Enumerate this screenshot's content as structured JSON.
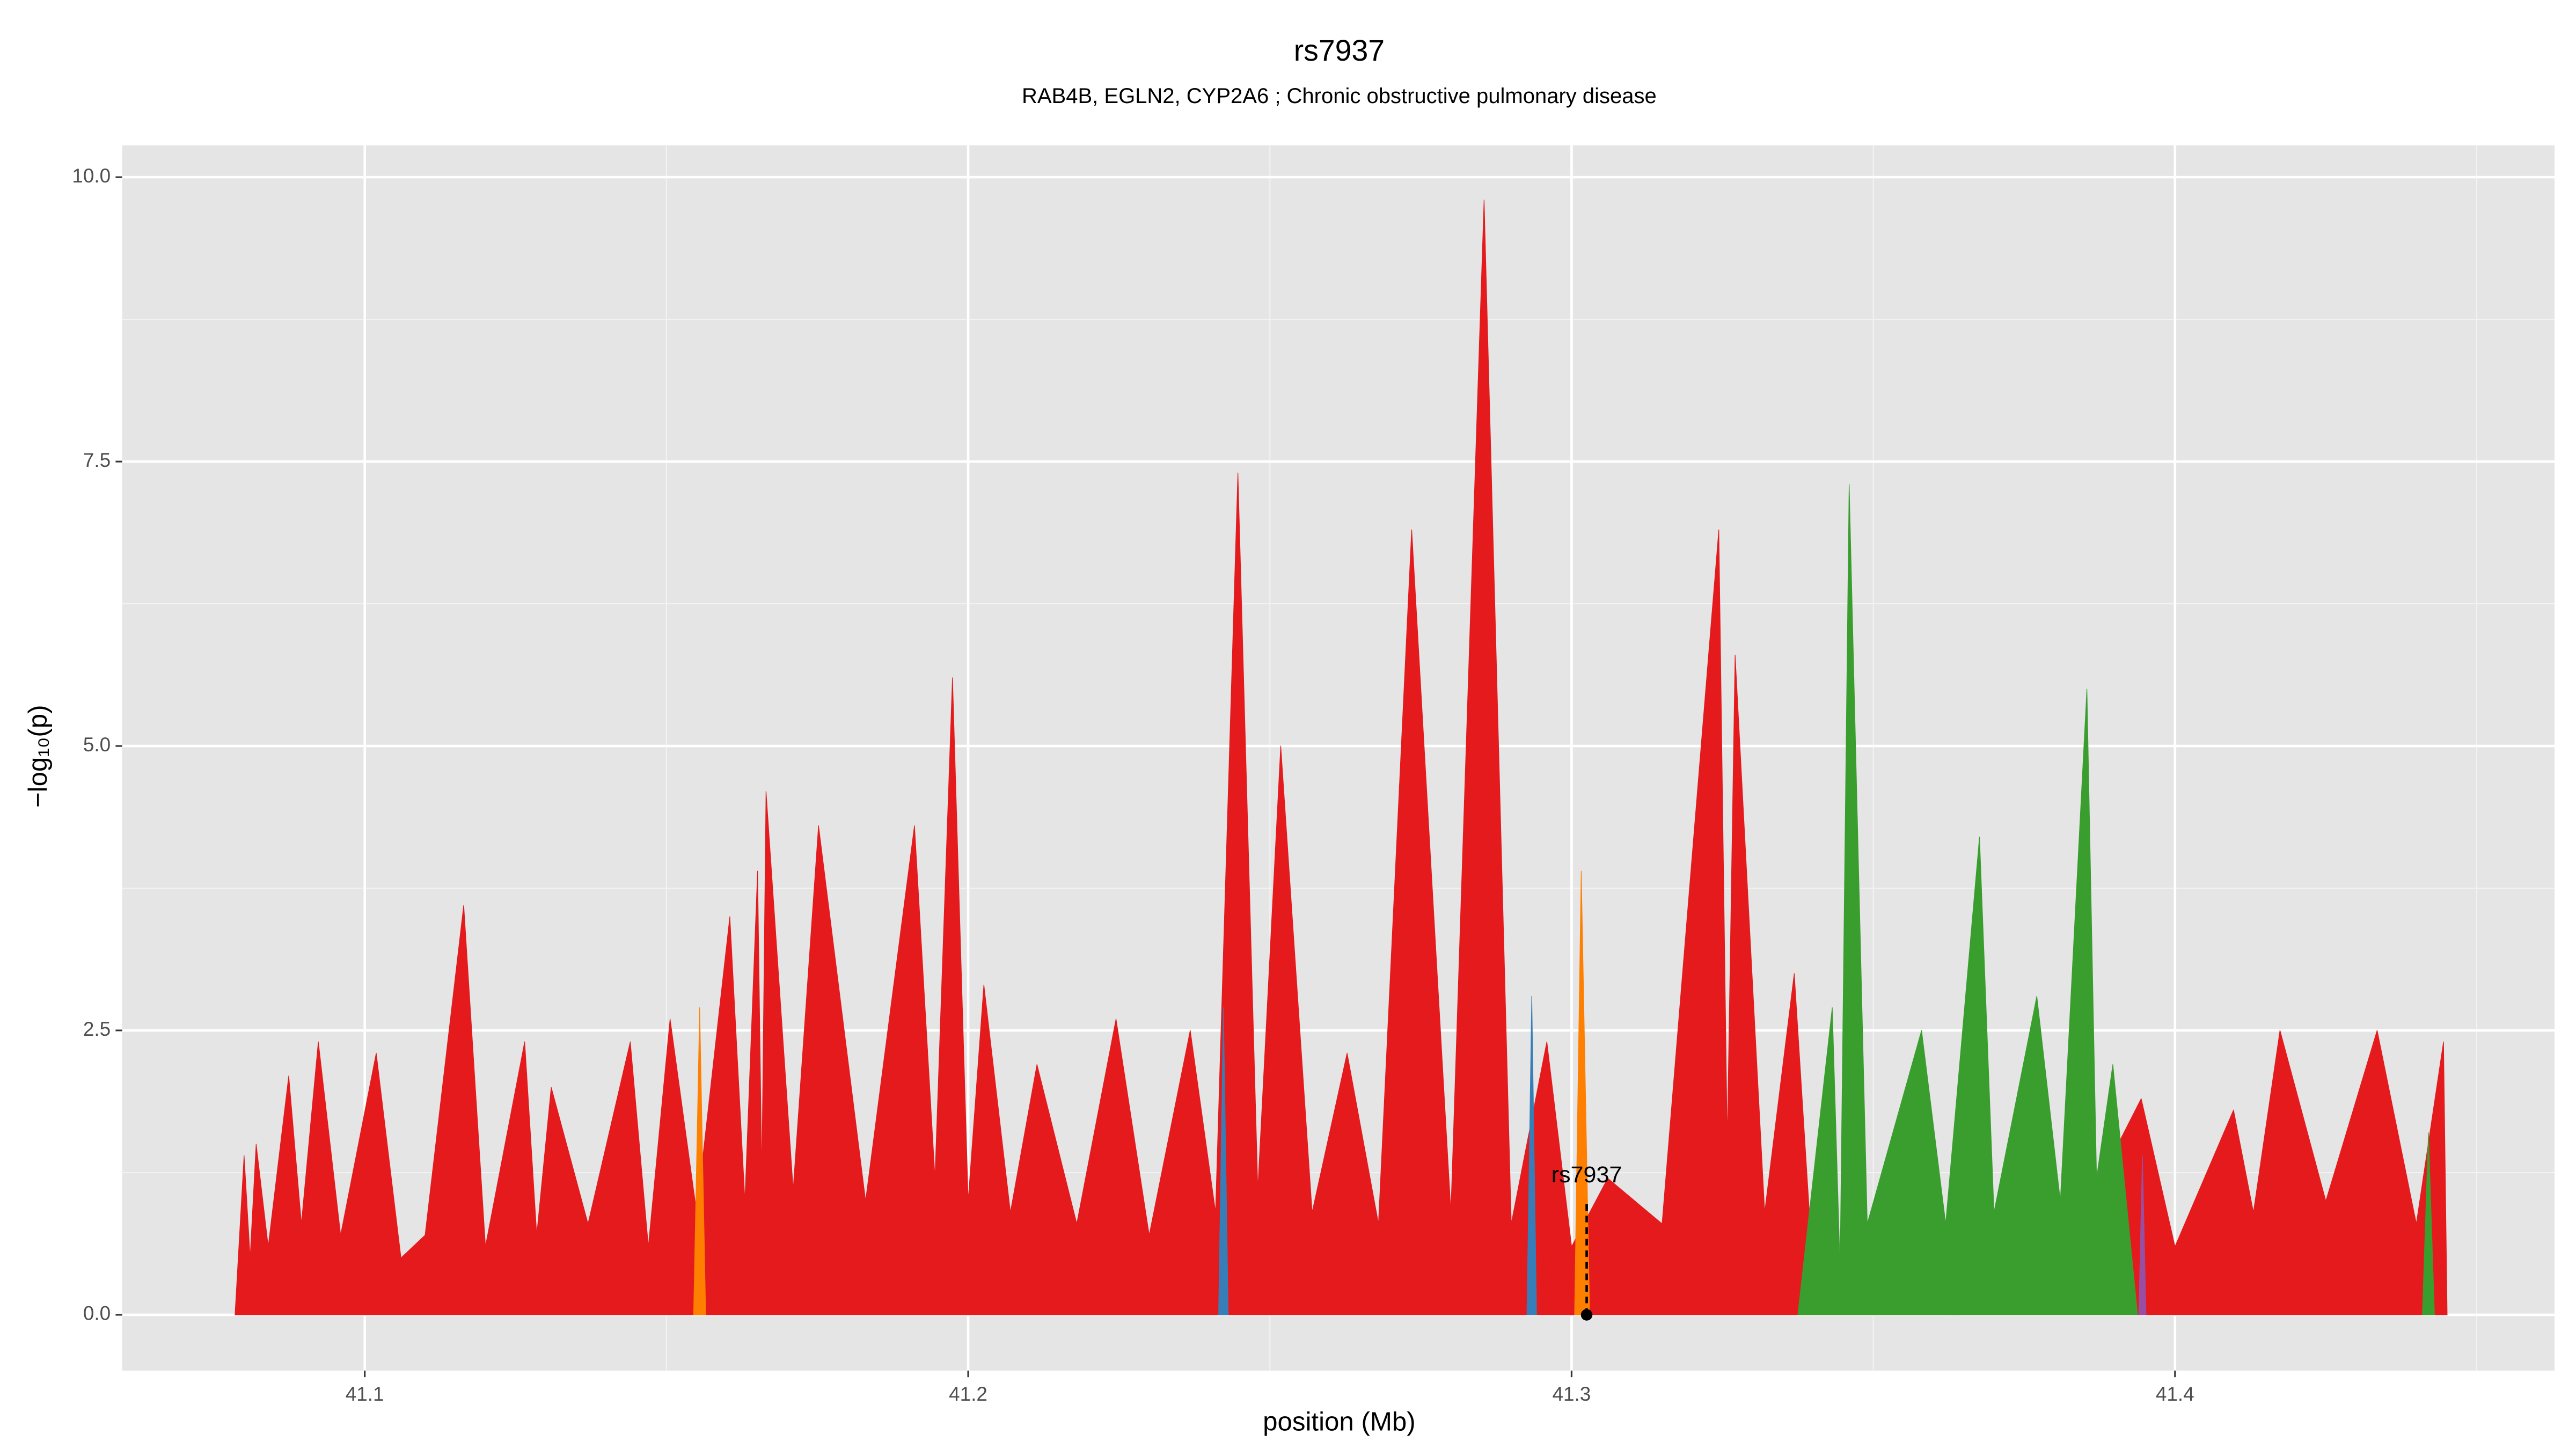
{
  "chart_data": {
    "type": "area",
    "title": "rs7937",
    "subtitle": "RAB4B, EGLN2, CYP2A6 ; Chronic obstructive pulmonary disease",
    "x_label": "position (Mb)",
    "y_label": "−log₁₀(p)",
    "xlim": [
      41.0598,
      41.4629
    ],
    "ylim": [
      -0.49,
      10.28
    ],
    "xticks": [
      41.1,
      41.2,
      41.3,
      41.4
    ],
    "yticks": [
      {
        "value": 0,
        "label": "0.0"
      },
      2.5,
      {
        "value": 5,
        "label": "5.0"
      },
      7.5,
      {
        "value": 10,
        "label": "10.0"
      }
    ],
    "x_minor_grid": [
      41.15,
      41.25,
      41.35,
      41.45
    ],
    "y_minor_grid": [
      1.25,
      3.75,
      6.25,
      8.75
    ],
    "grid": true,
    "annotation": {
      "label": "rs7937",
      "x": 41.3025,
      "value": 0
    },
    "series": [
      {
        "color": "#e41a1c",
        "x": [
          41.0785,
          41.08,
          41.081,
          41.082,
          41.084,
          41.0874,
          41.0895,
          41.0923,
          41.096,
          41.1019,
          41.106,
          41.11,
          41.1164,
          41.12,
          41.1265,
          41.1285,
          41.1309,
          41.137,
          41.144,
          41.147,
          41.1506,
          41.155,
          41.1605,
          41.163,
          41.1651,
          41.1658,
          41.1665,
          41.171,
          41.1752,
          41.183,
          41.1911,
          41.1945,
          41.1974,
          41.2,
          41.2026,
          41.207,
          41.2114,
          41.218,
          41.2245,
          41.23,
          41.2368,
          41.241,
          41.2447,
          41.248,
          41.2518,
          41.257,
          41.2628,
          41.268,
          41.2735,
          41.28,
          41.2855,
          41.29,
          41.2959,
          41.3,
          41.306,
          41.315,
          41.3244,
          41.3258,
          41.3271,
          41.332,
          41.3369,
          41.34,
          41.36,
          41.38,
          41.3944,
          41.4,
          41.4097,
          41.413,
          41.4174,
          41.425,
          41.4335,
          41.44,
          41.4445,
          41.4451
        ],
        "values": [
          0,
          1.4,
          0.5,
          1.5,
          0.6,
          2.1,
          0.8,
          2.4,
          0.7,
          2.3,
          0.5,
          0.7,
          3.6,
          0.6,
          2.4,
          0.7,
          2.0,
          0.8,
          2.4,
          0.6,
          2.6,
          0.9,
          3.5,
          1.0,
          3.9,
          1.2,
          4.6,
          1.1,
          4.3,
          1.0,
          4.3,
          1.2,
          5.6,
          1.0,
          2.9,
          0.9,
          2.2,
          0.8,
          2.6,
          0.7,
          2.5,
          0.9,
          7.4,
          1.1,
          5.0,
          0.9,
          2.3,
          0.8,
          6.9,
          0.9,
          9.8,
          0.8,
          2.4,
          0.6,
          1.2,
          0.8,
          6.9,
          1.5,
          5.8,
          0.9,
          3.0,
          0.4,
          0.5,
          0.4,
          1.9,
          0.6,
          1.8,
          0.9,
          2.5,
          1.0,
          2.5,
          0.8,
          2.4,
          0
        ]
      },
      {
        "color": "#377eb8",
        "x": [
          41.2415,
          41.2423,
          41.2431,
          null,
          41.2926,
          41.2934,
          41.2942
        ],
        "values": [
          0,
          2.7,
          0,
          null,
          0,
          2.8,
          0
        ]
      },
      {
        "color": "#984ea3",
        "x": [
          41.3625,
          41.3632,
          41.364,
          null,
          41.394,
          41.3946,
          41.3952
        ],
        "values": [
          0,
          1.3,
          0,
          null,
          0,
          1.4,
          0
        ]
      },
      {
        "color": "#ff7f00",
        "x": [
          41.1545,
          41.1555,
          41.1565,
          null,
          41.3005,
          41.3016,
          41.303
        ],
        "values": [
          0,
          2.7,
          0,
          null,
          0,
          3.9,
          0
        ]
      },
      {
        "color": "#3a9e2f",
        "x": [
          41.3375,
          41.3432,
          41.3445,
          41.346,
          41.349,
          41.358,
          41.362,
          41.3676,
          41.37,
          41.3771,
          41.381,
          41.3854,
          41.387,
          41.3897,
          41.3938,
          null,
          41.441,
          41.442,
          41.443
        ],
        "values": [
          0,
          2.7,
          0.4,
          7.3,
          0.8,
          2.5,
          0.8,
          4.2,
          0.9,
          2.8,
          1.0,
          5.5,
          1.2,
          2.2,
          0,
          null,
          0,
          1.6,
          0
        ]
      }
    ]
  }
}
